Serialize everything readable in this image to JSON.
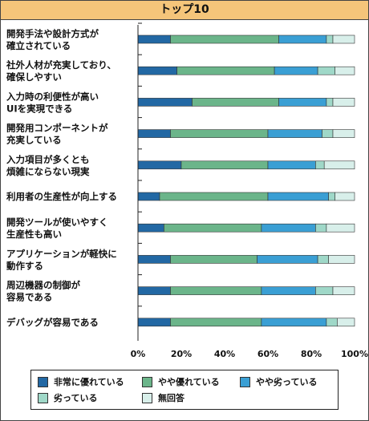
{
  "title": "トップ10",
  "chart_data": {
    "type": "bar",
    "orientation": "horizontal",
    "stacked": true,
    "title": "トップ10",
    "categories": [
      [
        "開発手法や設計方式が",
        "確立されている"
      ],
      [
        "社外人材が充実しており、",
        "確保しやすい"
      ],
      [
        "入力時の利便性が高い",
        "UIを実現できる"
      ],
      [
        "開発用コンポーネントが",
        "充実している"
      ],
      [
        "入力項目が多くとも",
        "煩雑にならない現実"
      ],
      [
        "利用者の生産性が向上する"
      ],
      [
        "開発ツールが使いやすく",
        "生産性も高い"
      ],
      [
        "アプリケーションが軽快に",
        "動作する"
      ],
      [
        "周辺機器の制御が",
        "容易である"
      ],
      [
        "デバッグが容易である"
      ]
    ],
    "series": [
      {
        "name": "非常に優れている",
        "color": "#2268a4",
        "values": [
          15,
          18,
          25,
          15,
          20,
          10,
          12,
          15,
          15,
          15
        ]
      },
      {
        "name": "やや優れている",
        "color": "#6bb58a",
        "values": [
          50,
          45,
          40,
          45,
          40,
          50,
          45,
          40,
          42,
          42
        ]
      },
      {
        "name": "やや劣っている",
        "color": "#3a9fd4",
        "values": [
          22,
          20,
          22,
          25,
          22,
          28,
          25,
          28,
          25,
          30
        ]
      },
      {
        "name": "劣っている",
        "color": "#9fd8c8",
        "values": [
          3,
          8,
          3,
          5,
          4,
          3,
          5,
          5,
          8,
          5
        ]
      },
      {
        "name": "無回答",
        "color": "#d8efea",
        "values": [
          10,
          9,
          10,
          10,
          14,
          9,
          13,
          12,
          10,
          8
        ]
      }
    ],
    "xlim": [
      0,
      100
    ],
    "xticks": [
      "0%",
      "20%",
      "40%",
      "60%",
      "80%",
      "100%"
    ],
    "grid": false,
    "legend_position": "bottom"
  }
}
